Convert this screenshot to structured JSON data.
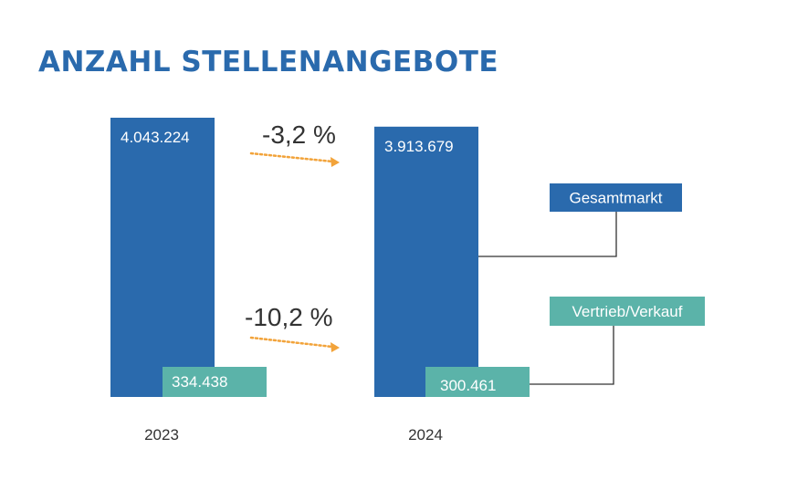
{
  "title": "ANZAHL STELLENANGEBOTE",
  "colors": {
    "title": "#2a6aad",
    "gesamtmarkt": "#2a6aad",
    "vertrieb": "#5bb3a9",
    "arrow": "#f2a33a",
    "connector": "#333333"
  },
  "chart_data": {
    "type": "bar",
    "categories": [
      "2023",
      "2024"
    ],
    "series": [
      {
        "name": "Gesamtmarkt",
        "values": [
          4043224,
          3913679
        ],
        "labels": [
          "4.043.224",
          "3.913.679"
        ]
      },
      {
        "name": "Vertrieb/Verkauf",
        "values": [
          334438,
          300461
        ],
        "labels": [
          "334.438",
          "300.461"
        ]
      }
    ],
    "changes": [
      {
        "series": "Gesamtmarkt",
        "label": "-3,2 %"
      },
      {
        "series": "Vertrieb/Verkauf",
        "label": "-10,2 %"
      }
    ],
    "legend": [
      "Gesamtmarkt",
      "Vertrieb/Verkauf"
    ]
  }
}
